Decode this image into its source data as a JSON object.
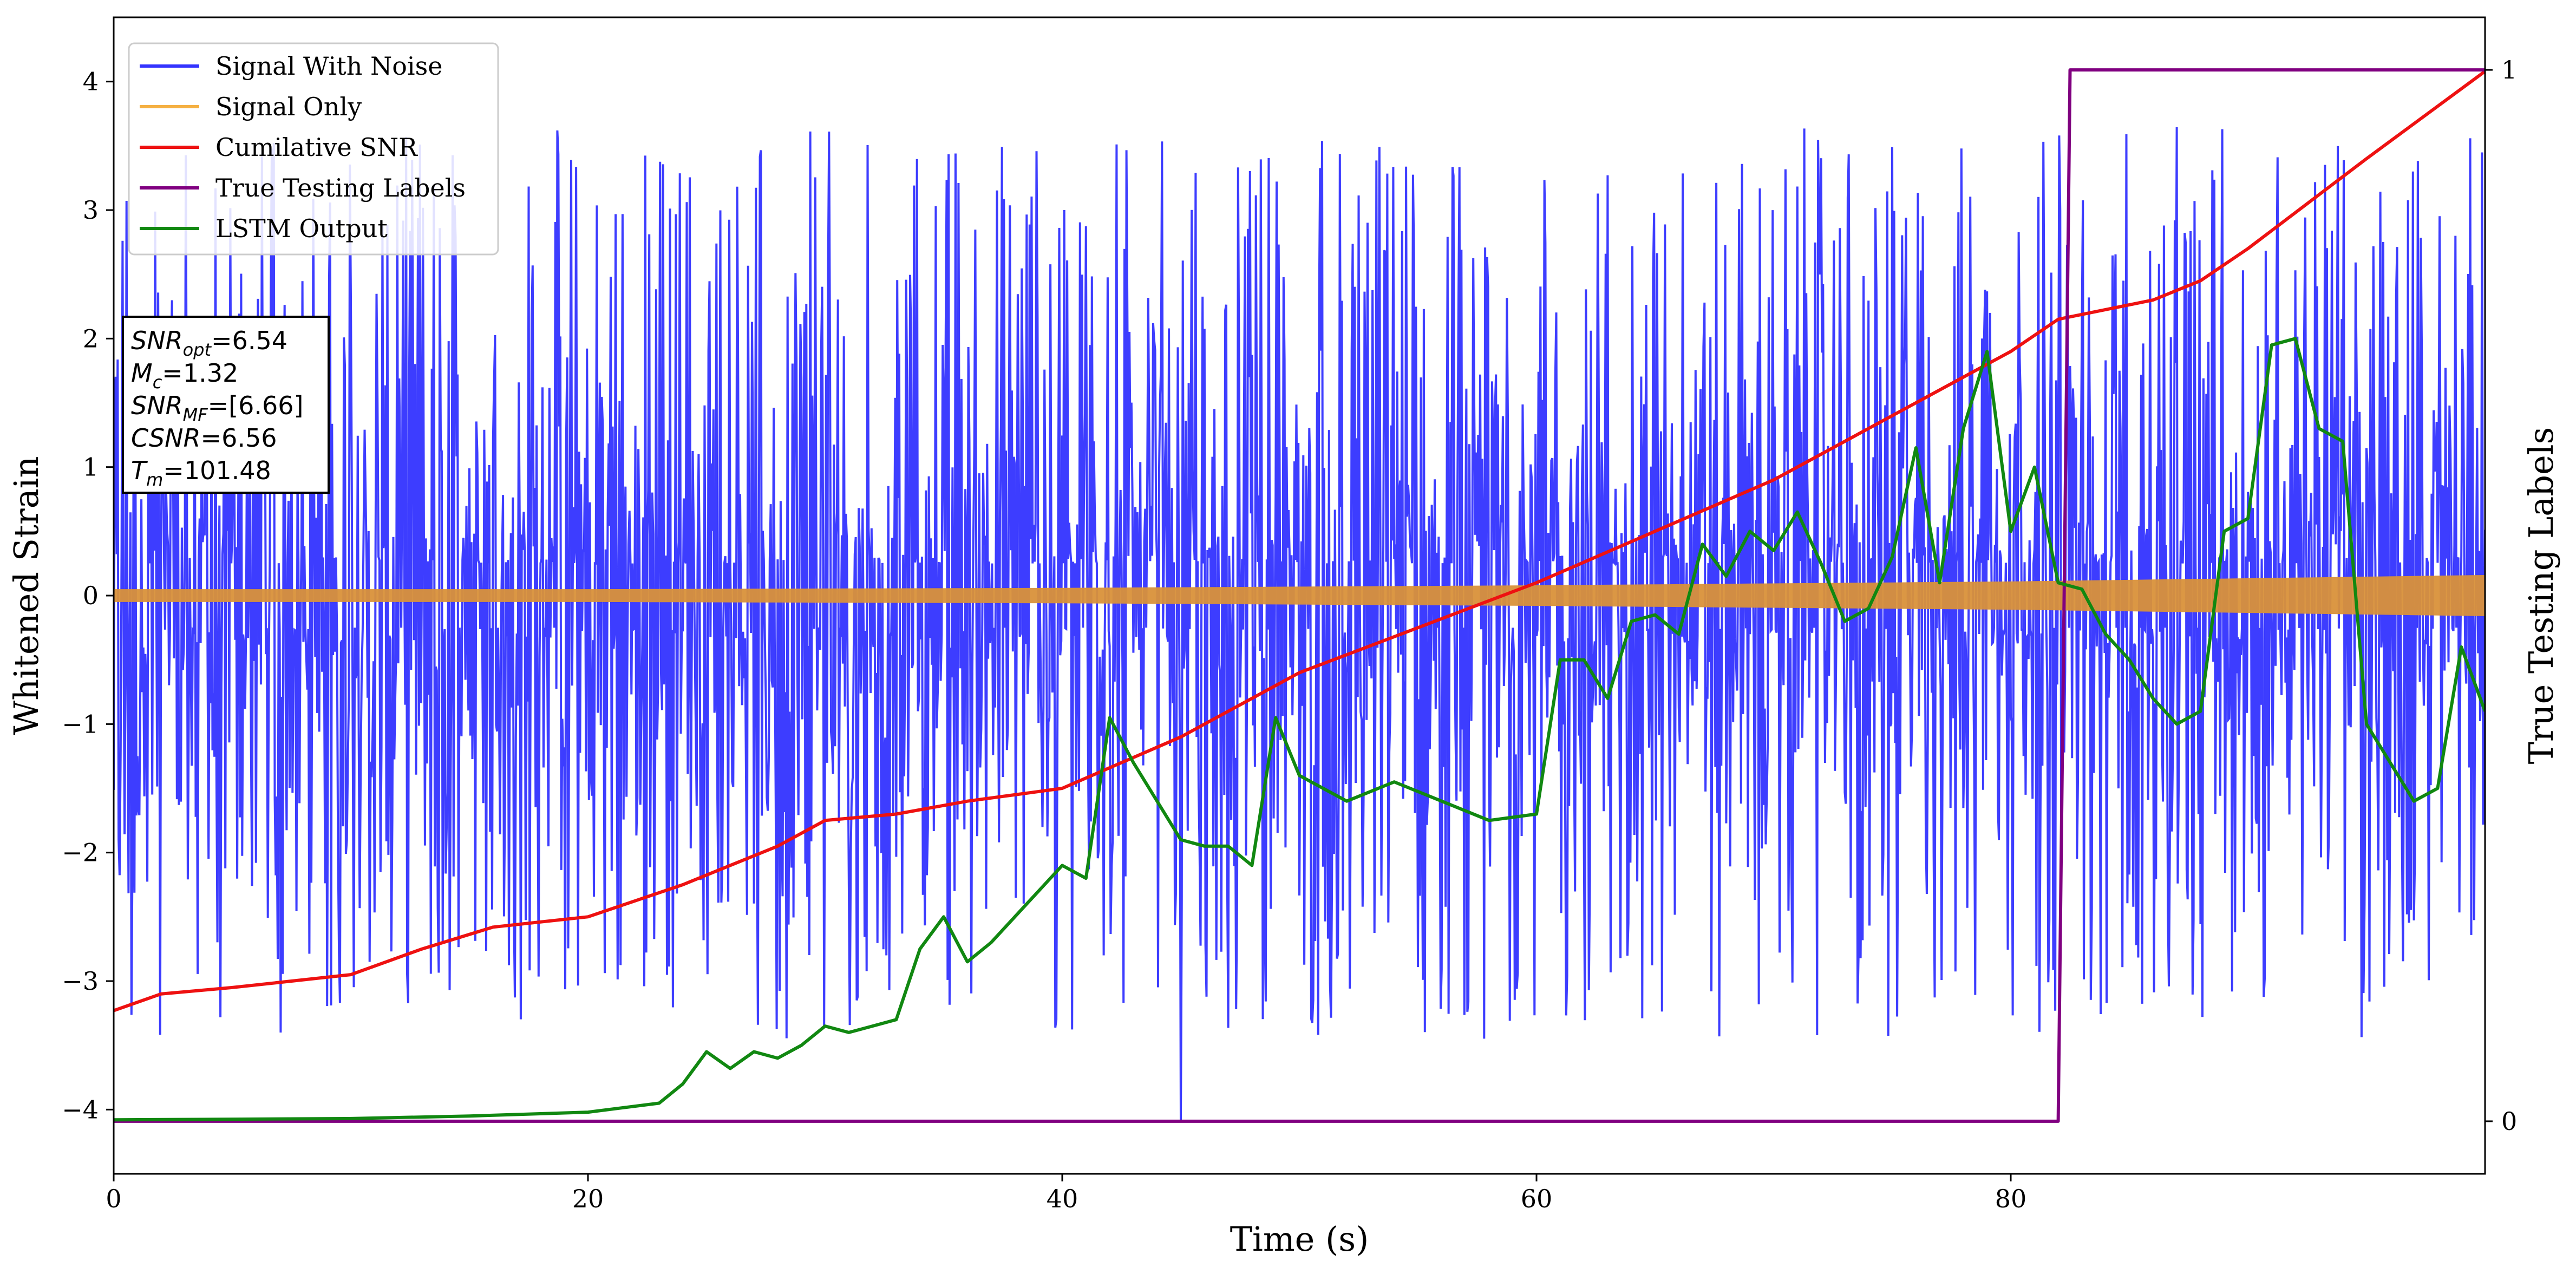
{
  "chart_data": {
    "type": "line",
    "xlabel": "Time (s)",
    "ylabel": "Whitened Strain",
    "y2label": "True Testing Labels",
    "xlim": [
      0,
      100
    ],
    "ylim": [
      -4.5,
      4.5
    ],
    "y2lim": [
      -0.05,
      1.05
    ],
    "x_ticks": [
      0,
      20,
      40,
      60,
      80
    ],
    "y_ticks": [
      -4,
      -3,
      -2,
      -1,
      0,
      1,
      2,
      3,
      4
    ],
    "y2_ticks": [
      0,
      1
    ],
    "legend_position": "upper-left",
    "legend": [
      {
        "label": "Signal With Noise",
        "color": "#3333ff"
      },
      {
        "label": "Signal Only",
        "color": "#f5b042"
      },
      {
        "label": "Cumilative SNR",
        "color": "#ee1111"
      },
      {
        "label": "True Testing Labels",
        "color": "#800080"
      },
      {
        "label": "LSTM Output",
        "color": "#118811"
      }
    ],
    "info_box": {
      "snr_opt_base": "SNR",
      "snr_opt_sub": "opt",
      "snr_opt_value": "=6.54",
      "mc_base": "M",
      "mc_sub": "c",
      "mc_value": "=1.32",
      "snr_mf_base": "SNR",
      "snr_mf_sub": "MF",
      "snr_mf_value": "=[6.66]",
      "csnr_base": "CSNR",
      "csnr_value": "=6.56",
      "tm_base": "T",
      "tm_sub": "m",
      "tm_value": "=101.48"
    },
    "series": [
      {
        "name": "Signal With Noise",
        "color": "#3333ff",
        "axis": "left",
        "kind": "noise",
        "envelope_upper": 3.4,
        "envelope_lower": -3.2,
        "outlier": {
          "x": 45.0,
          "y": -4.1
        }
      },
      {
        "name": "Signal Only",
        "color": "#f5b042",
        "axis": "left",
        "kind": "band",
        "x": [
          0,
          20,
          40,
          60,
          80,
          100
        ],
        "amplitude": [
          0.05,
          0.05,
          0.06,
          0.08,
          0.11,
          0.16
        ]
      },
      {
        "name": "Cumilative SNR",
        "color": "#ee1111",
        "axis": "left",
        "x": [
          0,
          2,
          5,
          10,
          13,
          16,
          20,
          24,
          28,
          30,
          33,
          36,
          38,
          40,
          45,
          50,
          55,
          60,
          65,
          70,
          75,
          80,
          82,
          86,
          88,
          90,
          95,
          100
        ],
        "y": [
          -3.23,
          -3.1,
          -3.05,
          -2.95,
          -2.75,
          -2.58,
          -2.5,
          -2.25,
          -1.95,
          -1.75,
          -1.7,
          -1.6,
          -1.55,
          -1.5,
          -1.1,
          -0.6,
          -0.25,
          0.1,
          0.5,
          0.9,
          1.4,
          1.9,
          2.15,
          2.3,
          2.45,
          2.7,
          3.4,
          4.08
        ]
      },
      {
        "name": "True Testing Labels",
        "color": "#800080",
        "axis": "right",
        "x": [
          0,
          82.0,
          82.5,
          100
        ],
        "y": [
          0,
          0,
          1,
          1
        ]
      },
      {
        "name": "LSTM Output",
        "color": "#118811",
        "axis": "left",
        "x": [
          0,
          10,
          15,
          20,
          23,
          24,
          25,
          26,
          27,
          28,
          29,
          30,
          31,
          32,
          33,
          34,
          35,
          36,
          37,
          38,
          39,
          40,
          41,
          42,
          43,
          44,
          45,
          46,
          47,
          48,
          49,
          50,
          52,
          54,
          56,
          58,
          60,
          61,
          62,
          63,
          64,
          65,
          66,
          67,
          68,
          69,
          70,
          71,
          72,
          73,
          74,
          75,
          76,
          77,
          78,
          79,
          80,
          81,
          82,
          83,
          84,
          85,
          86,
          87,
          88,
          89,
          90,
          91,
          92,
          93,
          94,
          95,
          96,
          97,
          98,
          99,
          100
        ],
        "y": [
          -4.08,
          -4.07,
          -4.05,
          -4.02,
          -3.95,
          -3.8,
          -3.55,
          -3.68,
          -3.55,
          -3.6,
          -3.5,
          -3.35,
          -3.4,
          -3.35,
          -3.3,
          -2.75,
          -2.5,
          -2.85,
          -2.7,
          -2.5,
          -2.3,
          -2.1,
          -2.2,
          -0.95,
          -1.3,
          -1.6,
          -1.9,
          -1.95,
          -1.95,
          -2.1,
          -0.95,
          -1.4,
          -1.6,
          -1.45,
          -1.6,
          -1.75,
          -1.7,
          -0.5,
          -0.5,
          -0.8,
          -0.2,
          -0.15,
          -0.3,
          0.4,
          0.15,
          0.5,
          0.35,
          0.65,
          0.25,
          -0.2,
          -0.1,
          0.3,
          1.15,
          0.1,
          1.3,
          1.9,
          0.5,
          1.0,
          0.1,
          0.05,
          -0.3,
          -0.5,
          -0.8,
          -1.0,
          -0.9,
          0.5,
          0.6,
          1.95,
          2.0,
          1.3,
          1.2,
          -1.0,
          -1.3,
          -1.6,
          -1.5,
          -0.4,
          -0.9
        ]
      }
    ]
  }
}
